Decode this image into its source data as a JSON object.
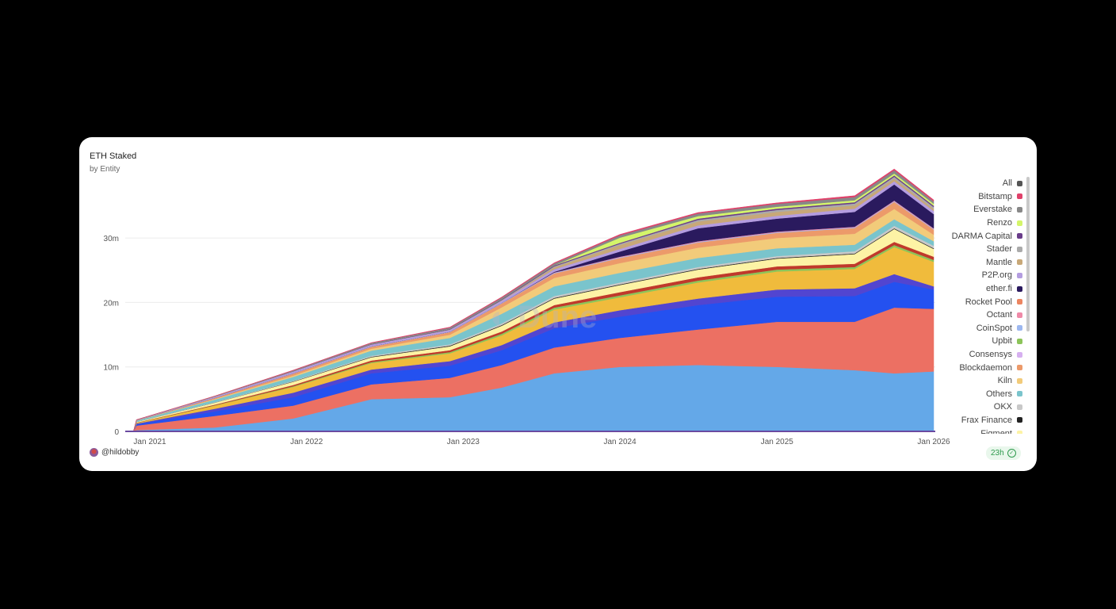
{
  "header": {
    "title": "ETH Staked",
    "subtitle": "by Entity"
  },
  "footer": {
    "author": "@hildobby",
    "refresh": "23h"
  },
  "watermark": "Dune",
  "chart_data": {
    "type": "area",
    "stacked": true,
    "title": "ETH Staked",
    "subtitle": "by Entity",
    "xlabel": "",
    "ylabel": "",
    "x": [
      "2020-11-24",
      "2020-12-01",
      "2021-06-01",
      "2021-12-01",
      "2022-06-01",
      "2022-12-01",
      "2023-04-01",
      "2023-08-01",
      "2024-01-01",
      "2024-07-01",
      "2025-01-01",
      "2025-07-01",
      "2025-10-01",
      "2026-01-01"
    ],
    "x_ticks": [
      "Jan 2021",
      "Jan 2022",
      "Jan 2023",
      "Jan 2024",
      "Jan 2025",
      "Jan 2026"
    ],
    "y_ticks": [
      "0",
      "10m",
      "20m",
      "30m"
    ],
    "ylim": [
      0,
      38000000
    ],
    "grid": "horizontal",
    "legend_placement": "right",
    "legend": [
      {
        "name": "All",
        "color": "#555555"
      },
      {
        "name": "Bitstamp",
        "color": "#e0416a"
      },
      {
        "name": "Everstake",
        "color": "#888888"
      },
      {
        "name": "Renzo",
        "color": "#d4f56a"
      },
      {
        "name": "DARMA Capital",
        "color": "#6a3d8a"
      },
      {
        "name": "Stader",
        "color": "#aaaaaa"
      },
      {
        "name": "Mantle",
        "color": "#c8a878"
      },
      {
        "name": "P2P.org",
        "color": "#b49de0"
      },
      {
        "name": "ether.fi",
        "color": "#2a1a5e"
      },
      {
        "name": "Rocket Pool",
        "color": "#ec8560"
      },
      {
        "name": "Octant",
        "color": "#ef8aa8"
      },
      {
        "name": "CoinSpot",
        "color": "#9db8f0"
      },
      {
        "name": "Upbit",
        "color": "#8cc45a"
      },
      {
        "name": "Consensys",
        "color": "#d6b0f0"
      },
      {
        "name": "Blockdaemon",
        "color": "#ec9a6a"
      },
      {
        "name": "Kiln",
        "color": "#f2cb7a"
      },
      {
        "name": "Others",
        "color": "#7ac4cc"
      },
      {
        "name": "OKX",
        "color": "#c8c8c8"
      },
      {
        "name": "Frax Finance",
        "color": "#222222"
      },
      {
        "name": "Figment",
        "color": "#fdf3a5"
      }
    ],
    "series": [
      {
        "color": "#64a8e8",
        "values": [
          0,
          0.2,
          0.6,
          2.0,
          5.0,
          5.3,
          6.8,
          9.0,
          10.0,
          10.3,
          10.0,
          9.5,
          9.0,
          9.3
        ]
      },
      {
        "color": "#ec7063",
        "values": [
          0,
          0.7,
          1.8,
          2.0,
          2.3,
          3.0,
          3.5,
          4.0,
          4.5,
          5.5,
          7.0,
          7.5,
          10.2,
          9.7
        ]
      },
      {
        "color": "#2451f0",
        "values": [
          0,
          0.2,
          0.7,
          1.3,
          1.7,
          1.9,
          2.3,
          3.0,
          3.3,
          3.8,
          3.9,
          4.0,
          4.0,
          3.0
        ]
      },
      {
        "color": "#5245d0",
        "values": [
          0,
          0.1,
          0.4,
          0.7,
          0.6,
          0.7,
          0.8,
          0.9,
          1.0,
          1.0,
          1.1,
          1.2,
          1.2,
          0.5
        ]
      },
      {
        "color": "#f0bb3c",
        "values": [
          0,
          0.1,
          0.5,
          0.9,
          1.0,
          1.2,
          1.5,
          2.0,
          2.0,
          2.5,
          2.8,
          3.0,
          4.2,
          3.8
        ]
      },
      {
        "name": "Upbit",
        "color": "#8cc45a",
        "values": [
          0,
          0.02,
          0.05,
          0.1,
          0.15,
          0.2,
          0.25,
          0.3,
          0.3,
          0.3,
          0.3,
          0.3,
          0.3,
          0.3
        ]
      },
      {
        "color": "#c0392b",
        "values": [
          0,
          0.05,
          0.1,
          0.2,
          0.25,
          0.3,
          0.35,
          0.4,
          0.5,
          0.5,
          0.5,
          0.5,
          0.5,
          0.5
        ]
      },
      {
        "name": "Figment",
        "color": "#fdf3a5",
        "values": [
          0,
          0.1,
          0.3,
          0.5,
          0.5,
          0.6,
          0.9,
          1.0,
          1.1,
          1.2,
          1.2,
          1.5,
          2.0,
          1.2
        ]
      },
      {
        "name": "Frax Finance",
        "color": "#222222",
        "values": [
          0,
          0,
          0.02,
          0.05,
          0.08,
          0.1,
          0.1,
          0.1,
          0.1,
          0.1,
          0.1,
          0.1,
          0.1,
          0.1
        ]
      },
      {
        "name": "OKX",
        "color": "#c8c8c8",
        "values": [
          0,
          0.02,
          0.05,
          0.1,
          0.15,
          0.2,
          0.25,
          0.3,
          0.3,
          0.3,
          0.3,
          0.35,
          0.4,
          0.4
        ]
      },
      {
        "name": "Others",
        "color": "#7ac4cc",
        "values": [
          0,
          0.2,
          0.4,
          0.6,
          0.8,
          1.0,
          1.5,
          1.5,
          1.5,
          1.4,
          1.2,
          1.0,
          1.0,
          0.7
        ]
      },
      {
        "name": "Kiln",
        "color": "#f2cb7a",
        "values": [
          0,
          0,
          0.1,
          0.2,
          0.3,
          0.5,
          1.0,
          1.3,
          1.5,
          1.6,
          1.6,
          1.7,
          1.6,
          1.0
        ]
      },
      {
        "name": "Blockdaemon",
        "color": "#ec9a6a",
        "values": [
          0,
          0.05,
          0.15,
          0.3,
          0.3,
          0.4,
          0.6,
          0.7,
          0.8,
          0.8,
          0.8,
          0.9,
          1.1,
          0.8
        ]
      },
      {
        "name": "CoinSpot",
        "color": "#9db8f0",
        "values": [
          0,
          0,
          0.02,
          0.05,
          0.05,
          0.05,
          0.08,
          0.1,
          0.1,
          0.1,
          0.1,
          0.1,
          0.1,
          0.1
        ]
      },
      {
        "name": "Octant",
        "color": "#ef8aa8",
        "values": [
          0,
          0,
          0,
          0,
          0,
          0,
          0,
          0.05,
          0.1,
          0.1,
          0.1,
          0.1,
          0.1,
          0.1
        ]
      },
      {
        "name": "ether.fi",
        "color": "#2a1a5e",
        "values": [
          0,
          0,
          0,
          0,
          0,
          0,
          0,
          0.1,
          0.8,
          2.0,
          2.0,
          2.3,
          2.5,
          2.2
        ]
      },
      {
        "name": "P2P.org",
        "color": "#b49de0",
        "values": [
          0,
          0.05,
          0.2,
          0.3,
          0.3,
          0.3,
          0.35,
          0.4,
          0.4,
          0.45,
          0.45,
          0.5,
          0.5,
          0.5
        ]
      },
      {
        "name": "Mantle",
        "color": "#c8a878",
        "values": [
          0,
          0,
          0,
          0,
          0,
          0,
          0,
          0.3,
          0.6,
          0.6,
          0.6,
          0.5,
          0.4,
          0.3
        ]
      },
      {
        "name": "Stader",
        "color": "#aaaaaa",
        "values": [
          0,
          0,
          0,
          0,
          0,
          0.05,
          0.1,
          0.15,
          0.2,
          0.25,
          0.3,
          0.3,
          0.3,
          0.3
        ]
      },
      {
        "name": "DARMA Capital",
        "color": "#6a3d8a",
        "values": [
          0,
          0,
          0.02,
          0.05,
          0.08,
          0.1,
          0.12,
          0.15,
          0.15,
          0.2,
          0.2,
          0.2,
          0.2,
          0.2
        ]
      },
      {
        "name": "Renzo",
        "color": "#d4f56a",
        "values": [
          0,
          0,
          0,
          0,
          0,
          0,
          0,
          0,
          0.8,
          0.4,
          0.3,
          0.3,
          0.3,
          0.3
        ]
      },
      {
        "name": "Everstake",
        "color": "#888888",
        "values": [
          0,
          0.02,
          0.05,
          0.1,
          0.15,
          0.2,
          0.25,
          0.3,
          0.35,
          0.4,
          0.45,
          0.5,
          0.5,
          0.4
        ]
      },
      {
        "name": "Bitstamp",
        "color": "#e0416a",
        "values": [
          0,
          0,
          0.02,
          0.05,
          0.05,
          0.08,
          0.1,
          0.1,
          0.15,
          0.15,
          0.15,
          0.2,
          0.2,
          0.2
        ]
      }
    ],
    "units": "millions of ETH"
  }
}
